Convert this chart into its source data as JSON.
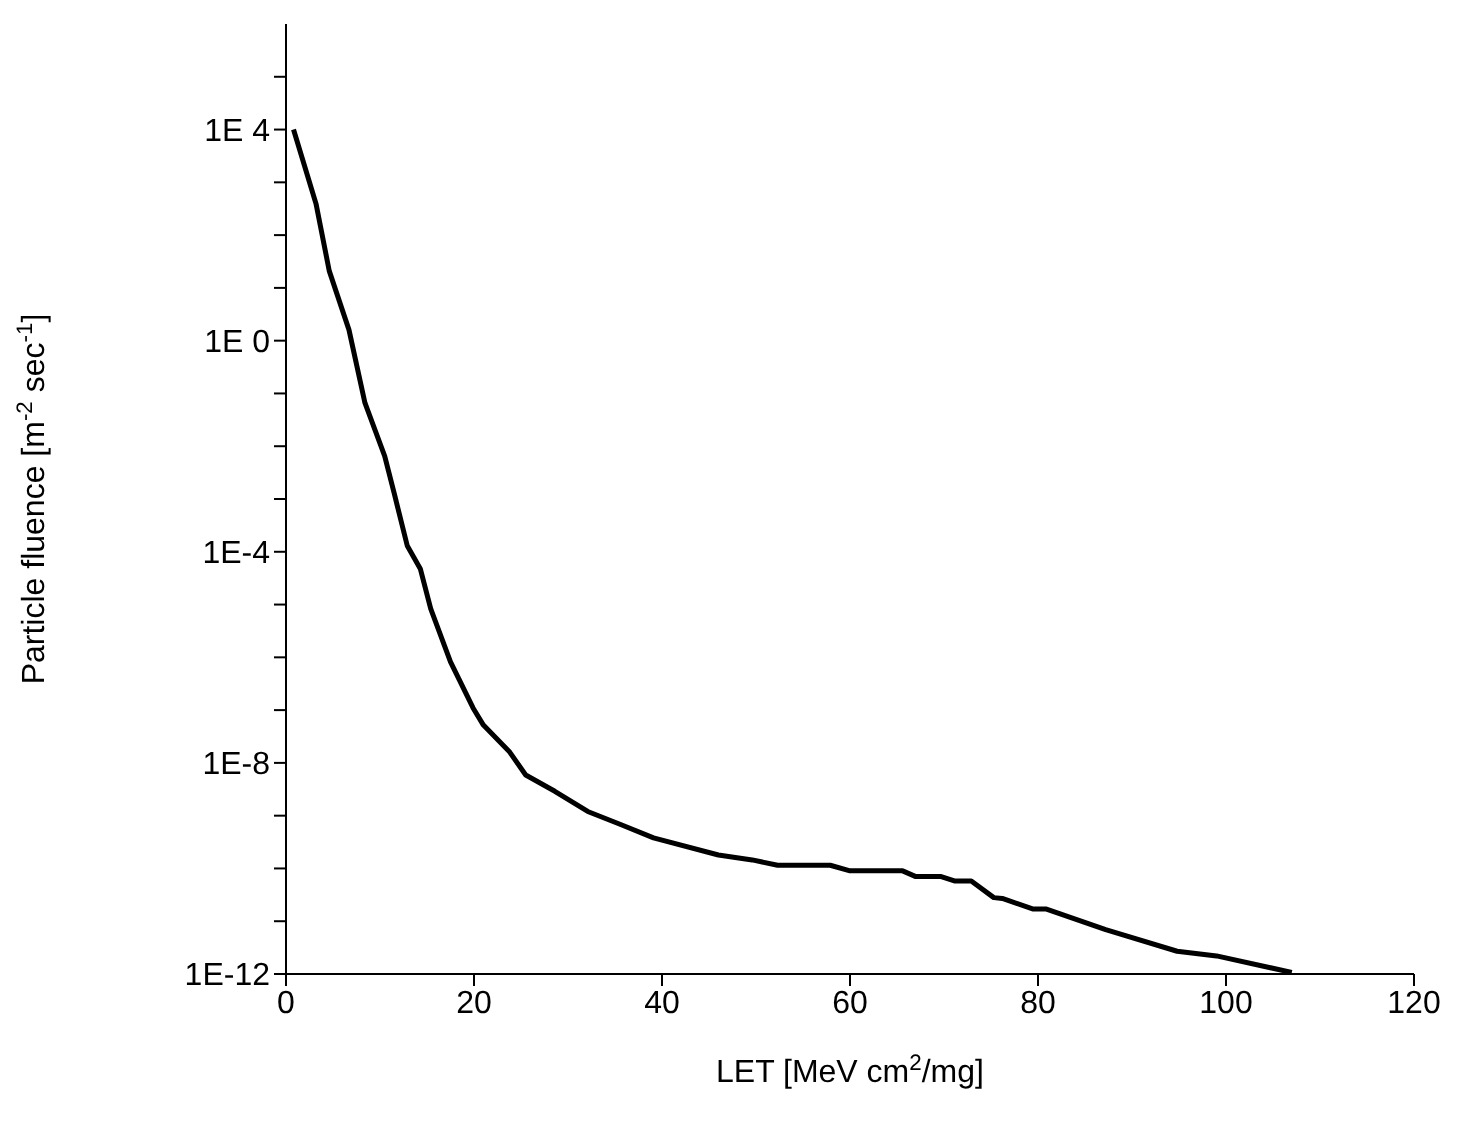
{
  "chart_data": {
    "type": "line",
    "xlabel": "LET [MeV cm$^{2}$/mg]",
    "ylabel": "Particle fluence [m$^{-2}$ sec$^{-1}$]",
    "log": "y",
    "xlim": [
      0,
      120
    ],
    "xticks": [
      0,
      20,
      40,
      60,
      80,
      100,
      120
    ],
    "ylim": [
      1e-12,
      1000000.0
    ],
    "yticks": [
      {
        "value": 1e-12,
        "label": "1E-12"
      },
      {
        "value": 1e-11,
        "label": null
      },
      {
        "value": 1e-10,
        "label": null
      },
      {
        "value": 1e-09,
        "label": null
      },
      {
        "value": 1e-08,
        "label": "1E-8"
      },
      {
        "value": 1e-07,
        "label": null
      },
      {
        "value": 1e-06,
        "label": null
      },
      {
        "value": 1e-05,
        "label": null
      },
      {
        "value": 0.0001,
        "label": "1E-4"
      },
      {
        "value": 0.001,
        "label": null
      },
      {
        "value": 0.01,
        "label": null
      },
      {
        "value": 0.1,
        "label": null
      },
      {
        "value": 1,
        "label": "1E 0"
      },
      {
        "value": 10,
        "label": null
      },
      {
        "value": 100,
        "label": null
      },
      {
        "value": 1000,
        "label": null
      },
      {
        "value": 10000,
        "label": "1E 4"
      },
      {
        "value": 100000,
        "label": null
      }
    ],
    "grid": false,
    "legend": false,
    "marker": "none",
    "line_style": "solid",
    "series": [
      {
        "color": "#000000",
        "x": [
          0.8,
          3.2,
          4.6,
          6.7,
          8.4,
          10.5,
          11.5,
          12.9,
          14.3,
          15.4,
          17.5,
          19.9,
          21,
          23.8,
          25.5,
          28.6,
          32.1,
          35.6,
          39.1,
          46,
          49.6,
          52.3,
          57.9,
          60,
          65.6,
          67,
          69.7,
          71.1,
          72.9,
          75.3,
          76.2,
          79.5,
          80.9,
          87.2,
          94.8,
          99,
          107
        ],
        "values": [
          10000,
          390,
          21,
          1.6,
          0.066,
          0.0065,
          0.0013,
          0.00013,
          4.7e-05,
          8.3e-06,
          8.2e-07,
          1.1e-07,
          5.2e-08,
          1.6e-08,
          5.9e-09,
          2.9e-09,
          1.2e-09,
          6.8e-10,
          3.8e-10,
          1.8e-10,
          1.45e-10,
          1.15e-10,
          1.15e-10,
          9e-11,
          9e-11,
          7e-11,
          7e-11,
          5.8e-11,
          5.8e-11,
          2.8e-11,
          2.7e-11,
          1.7e-11,
          1.7e-11,
          6.9e-12,
          2.7e-12,
          2.2e-12,
          1.07e-12
        ]
      }
    ]
  }
}
